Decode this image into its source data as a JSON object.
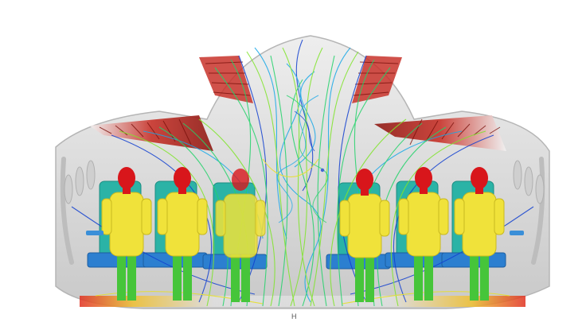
{
  "figure": {
    "type": "cfd-streamline-render",
    "background_color": "#ffffff",
    "cabin_color": "#d9d9d9",
    "seat_color": "#2bb3a6",
    "passenger_body_color": "#f0e23a",
    "passenger_head_color": "#d8161b",
    "passenger_leg_color": "#46c53a",
    "inlet_color": "#d23a2a",
    "streamline_palette": [
      "#1240d0",
      "#18a8e8",
      "#22d36a",
      "#7fe52a",
      "#e8e020"
    ],
    "passenger_count": 6,
    "footer_mark": "H"
  }
}
